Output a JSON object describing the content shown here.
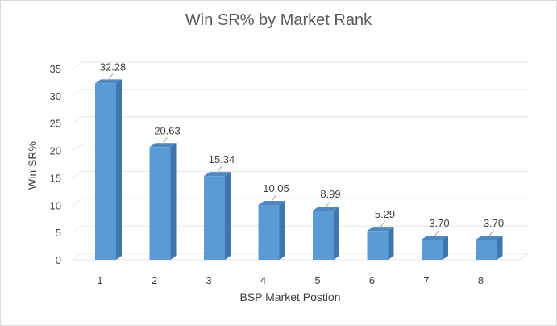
{
  "chart_data": {
    "type": "bar",
    "title": "Win SR% by Market Rank",
    "xlabel": "BSP Market Postion",
    "ylabel": "Win SR%",
    "categories": [
      "1",
      "2",
      "3",
      "4",
      "5",
      "6",
      "7",
      "8"
    ],
    "values": [
      32.28,
      20.63,
      15.34,
      10.05,
      8.99,
      5.29,
      3.7,
      3.7
    ],
    "data_labels": [
      "32.28",
      "20.63",
      "15.34",
      "10.05",
      "8.99",
      "5.29",
      "3.70",
      "3.70"
    ],
    "y_ticks": [
      "0",
      "5",
      "10",
      "15",
      "20",
      "25",
      "30",
      "35"
    ],
    "ylim": [
      0,
      35
    ],
    "grid": true,
    "style": "3d-column",
    "colors": {
      "bar_front": "#5b9bd5",
      "bar_side": "#3f76ac",
      "bar_top": "#4f87be",
      "grid": "#e6e6e6"
    }
  }
}
